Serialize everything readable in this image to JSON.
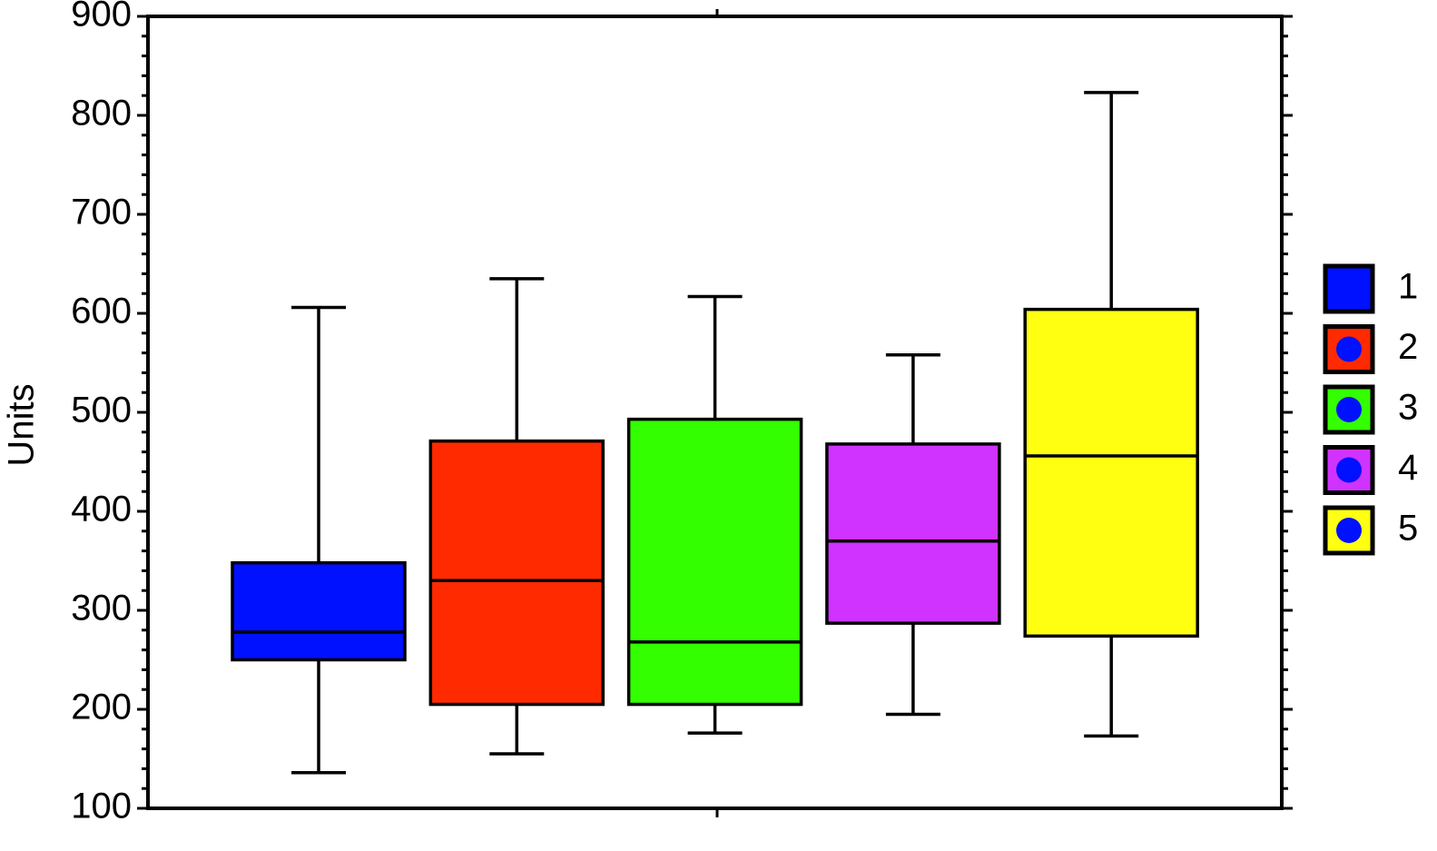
{
  "chart_data": {
    "type": "box",
    "y_label": "Units",
    "ylim": [
      100,
      900
    ],
    "yticks": [
      100,
      200,
      300,
      400,
      500,
      600,
      700,
      800,
      900
    ],
    "series": [
      {
        "name": "1",
        "color": "#0011ff",
        "min": 136,
        "q1": 250,
        "median": 278,
        "q3": 348,
        "max": 606
      },
      {
        "name": "2",
        "color": "#ff2a00",
        "min": 155,
        "q1": 205,
        "median": 330,
        "q3": 471,
        "max": 635
      },
      {
        "name": "3",
        "color": "#33ff00",
        "min": 176,
        "q1": 205,
        "median": 268,
        "q3": 493,
        "max": 617
      },
      {
        "name": "4",
        "color": "#d033ff",
        "min": 195,
        "q1": 287,
        "median": 370,
        "q3": 468,
        "max": 558
      },
      {
        "name": "5",
        "color": "#ffff11",
        "min": 173,
        "q1": 274,
        "median": 456,
        "q3": 604,
        "max": 823
      }
    ]
  }
}
